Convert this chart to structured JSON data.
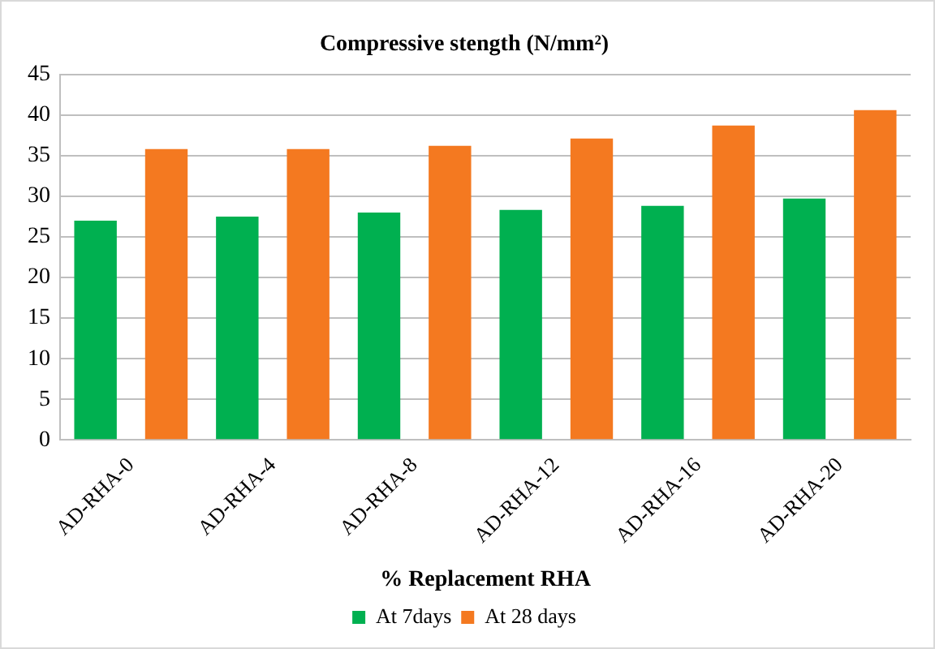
{
  "chart_data": {
    "type": "bar",
    "title": "Compressive stength (N/mm²)",
    "xlabel": "% Replacement RHA",
    "categories": [
      "AD-RHA-0",
      "AD-RHA-4",
      "AD-RHA-8",
      "AD-RHA-12",
      "AD-RHA-16",
      "AD-RHA-20"
    ],
    "series": [
      {
        "name": "At 7days",
        "color": "#00b050",
        "values": [
          27,
          27.5,
          28,
          28.3,
          28.8,
          29.7
        ]
      },
      {
        "name": "At 28 days",
        "color": "#f47920",
        "values": [
          35.8,
          35.8,
          36.2,
          37.1,
          38.7,
          40.6
        ]
      }
    ],
    "ylim": [
      0,
      45
    ],
    "yticks": [
      0,
      5,
      10,
      15,
      20,
      25,
      30,
      35,
      40,
      45
    ],
    "grid": "y",
    "legend": "bottom"
  }
}
